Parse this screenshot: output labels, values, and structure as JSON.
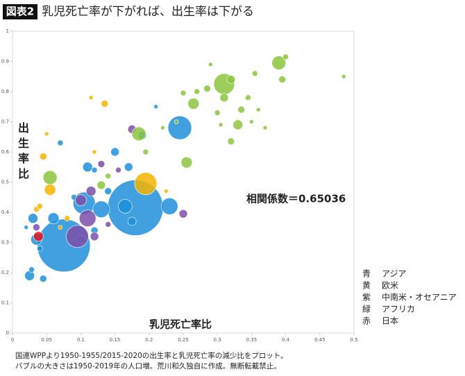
{
  "chart_data": {
    "type": "bubble",
    "badge": "図表2",
    "title": "乳児死亡率が下がれば、出生率は下がる",
    "x_label": "乳児死亡率比",
    "y_label": "出生率比",
    "annotation": "相関係数＝0.65036",
    "footnotes": [
      "国連WPPより1950-1955/2015-2020の出生率と乳児死亡率の減少比をプロット。",
      "バブルの大きさは1950-2019年の人口増。荒川和久独自に作成。無断転載禁止。"
    ],
    "xlim": [
      0,
      0.5
    ],
    "xticks": [
      0,
      0.05,
      0.1,
      0.15,
      0.2,
      0.25,
      0.3,
      0.35,
      0.4,
      0.45,
      0.5
    ],
    "ylim": [
      0,
      1
    ],
    "yticks": [
      0,
      0.1,
      0.2,
      0.3,
      0.4,
      0.5,
      0.6,
      0.7,
      0.8,
      0.9,
      1
    ],
    "series": [
      {
        "name": "アジア",
        "color_name": "青",
        "color": "#1f8fdb",
        "x": [
          0.075,
          0.18,
          0.245,
          0.23,
          0.105,
          0.165,
          0.13,
          0.06,
          0.03,
          0.035,
          0.025,
          0.045,
          0.028,
          0.11,
          0.15,
          0.17,
          0.19,
          0.07,
          0.1,
          0.12,
          0.14,
          0.04,
          0.21,
          0.175,
          0.02,
          0.12,
          0.09
        ],
        "values": [
          0.29,
          0.415,
          0.68,
          0.42,
          0.43,
          0.42,
          0.41,
          0.38,
          0.38,
          0.31,
          0.19,
          0.18,
          0.21,
          0.55,
          0.6,
          0.55,
          0.655,
          0.63,
          0.31,
          0.34,
          0.47,
          0.28,
          0.75,
          0.37,
          0.35,
          0.54,
          0.45
        ],
        "sizes": [
          1444,
          1600,
          289,
          144,
          256,
          100,
          144,
          64,
          49,
          64,
          49,
          25,
          16,
          49,
          36,
          36,
          36,
          16,
          36,
          25,
          25,
          16,
          9,
          36,
          9,
          16,
          16
        ]
      },
      {
        "name": "欧米",
        "color_name": "黄",
        "color": "#f5b400",
        "x": [
          0.195,
          0.055,
          0.045,
          0.135,
          0.035,
          0.04,
          0.08,
          0.05,
          0.115,
          0.225,
          0.07,
          0.12
        ],
        "values": [
          0.495,
          0.475,
          0.585,
          0.76,
          0.41,
          0.42,
          0.38,
          0.66,
          0.78,
          0.47,
          0.35,
          0.6
        ],
        "sizes": [
          256,
          64,
          25,
          25,
          16,
          16,
          16,
          9,
          9,
          9,
          9,
          9
        ]
      },
      {
        "name": "中南米・オセアニア",
        "color_name": "紫",
        "color": "#7b4fa8",
        "x": [
          0.095,
          0.11,
          0.115,
          0.175,
          0.25,
          0.13,
          0.035,
          0.1,
          0.12,
          0.155,
          0.14
        ],
        "values": [
          0.32,
          0.38,
          0.47,
          0.675,
          0.395,
          0.56,
          0.35,
          0.44,
          0.32,
          0.54,
          0.36
        ],
        "sizes": [
          256,
          144,
          49,
          36,
          36,
          25,
          25,
          64,
          36,
          16,
          16
        ]
      },
      {
        "name": "アフリカ",
        "color_name": "緑",
        "color": "#8cc63f",
        "x": [
          0.31,
          0.39,
          0.185,
          0.055,
          0.255,
          0.32,
          0.265,
          0.33,
          0.395,
          0.355,
          0.31,
          0.335,
          0.32,
          0.285,
          0.345,
          0.27,
          0.3,
          0.36,
          0.35,
          0.25,
          0.4,
          0.485,
          0.13,
          0.14,
          0.29,
          0.22,
          0.24,
          0.305,
          0.195,
          0.37
        ],
        "values": [
          0.825,
          0.895,
          0.66,
          0.515,
          0.565,
          0.84,
          0.76,
          0.69,
          0.84,
          0.86,
          0.78,
          0.74,
          0.635,
          0.81,
          0.78,
          0.8,
          0.73,
          0.74,
          0.7,
          0.795,
          0.915,
          0.85,
          0.49,
          0.52,
          0.89,
          0.68,
          0.7,
          0.69,
          0.6,
          0.68
        ],
        "sizes": [
          225,
          100,
          100,
          100,
          64,
          36,
          64,
          49,
          25,
          16,
          36,
          25,
          25,
          25,
          16,
          16,
          16,
          9,
          9,
          16,
          16,
          9,
          36,
          16,
          9,
          9,
          9,
          9,
          16,
          9
        ]
      },
      {
        "name": "日本",
        "color_name": "赤",
        "color": "#e0141e",
        "x": [
          0.038
        ],
        "values": [
          0.32
        ],
        "sizes": [
          49
        ]
      }
    ]
  }
}
